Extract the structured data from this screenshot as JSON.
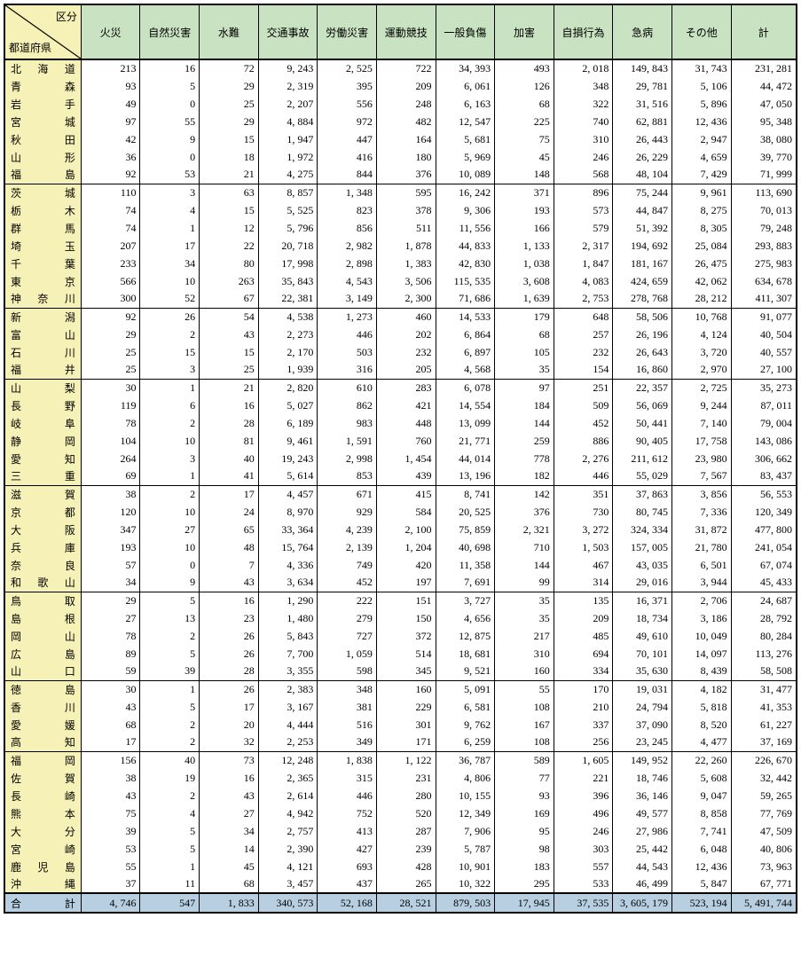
{
  "header": {
    "corner_top": "区分",
    "corner_bottom": "都道府県",
    "cols": [
      "火災",
      "自然災害",
      "水難",
      "交通事故",
      "労働災害",
      "運動競技",
      "一般負傷",
      "加害",
      "自損行為",
      "急病",
      "その他",
      "計"
    ]
  },
  "colors": {
    "header_bg": "#c9e3c2",
    "pref_bg": "#f6f1b7",
    "total_bg": "#b7cfe0",
    "border": "#000000"
  },
  "colwidths": {
    "pref": 83,
    "col": 64,
    "last": 71
  },
  "groups": [
    {
      "rows": [
        {
          "pref": "北海道",
          "v": [
            213,
            16,
            72,
            9243,
            2525,
            722,
            34393,
            493,
            2018,
            149843,
            31743,
            231281
          ]
        },
        {
          "pref": "青森",
          "v": [
            93,
            5,
            29,
            2319,
            395,
            209,
            6061,
            126,
            348,
            29781,
            5106,
            44472
          ]
        },
        {
          "pref": "岩手",
          "v": [
            49,
            0,
            25,
            2207,
            556,
            248,
            6163,
            68,
            322,
            31516,
            5896,
            47050
          ]
        },
        {
          "pref": "宮城",
          "v": [
            97,
            55,
            29,
            4884,
            972,
            482,
            12547,
            225,
            740,
            62881,
            12436,
            95348
          ]
        },
        {
          "pref": "秋田",
          "v": [
            42,
            9,
            15,
            1947,
            447,
            164,
            5681,
            75,
            310,
            26443,
            2947,
            38080
          ]
        },
        {
          "pref": "山形",
          "v": [
            36,
            0,
            18,
            1972,
            416,
            180,
            5969,
            45,
            246,
            26229,
            4659,
            39770
          ]
        },
        {
          "pref": "福島",
          "v": [
            92,
            53,
            21,
            4275,
            844,
            376,
            10089,
            148,
            568,
            48104,
            7429,
            71999
          ]
        }
      ]
    },
    {
      "rows": [
        {
          "pref": "茨城",
          "v": [
            110,
            3,
            63,
            8857,
            1348,
            595,
            16242,
            371,
            896,
            75244,
            9961,
            113690
          ]
        },
        {
          "pref": "栃木",
          "v": [
            74,
            4,
            15,
            5525,
            823,
            378,
            9306,
            193,
            573,
            44847,
            8275,
            70013
          ]
        },
        {
          "pref": "群馬",
          "v": [
            74,
            1,
            12,
            5796,
            856,
            511,
            11556,
            166,
            579,
            51392,
            8305,
            79248
          ]
        },
        {
          "pref": "埼玉",
          "v": [
            207,
            17,
            22,
            20718,
            2982,
            1878,
            44833,
            1133,
            2317,
            194692,
            25084,
            293883
          ]
        },
        {
          "pref": "千葉",
          "v": [
            233,
            34,
            80,
            17998,
            2898,
            1383,
            42830,
            1038,
            1847,
            181167,
            26475,
            275983
          ]
        },
        {
          "pref": "東京",
          "v": [
            566,
            10,
            263,
            35843,
            4543,
            3506,
            115535,
            3608,
            4083,
            424659,
            42062,
            634678
          ]
        },
        {
          "pref": "神奈川",
          "v": [
            300,
            52,
            67,
            22381,
            3149,
            2300,
            71686,
            1639,
            2753,
            278768,
            28212,
            411307
          ]
        }
      ]
    },
    {
      "rows": [
        {
          "pref": "新潟",
          "v": [
            92,
            26,
            54,
            4538,
            1273,
            460,
            14533,
            179,
            648,
            58506,
            10768,
            91077
          ]
        },
        {
          "pref": "富山",
          "v": [
            29,
            2,
            43,
            2273,
            446,
            202,
            6864,
            68,
            257,
            26196,
            4124,
            40504
          ]
        },
        {
          "pref": "石川",
          "v": [
            25,
            15,
            15,
            2170,
            503,
            232,
            6897,
            105,
            232,
            26643,
            3720,
            40557
          ]
        },
        {
          "pref": "福井",
          "v": [
            25,
            3,
            25,
            1939,
            316,
            205,
            4568,
            35,
            154,
            16860,
            2970,
            27100
          ]
        }
      ]
    },
    {
      "rows": [
        {
          "pref": "山梨",
          "v": [
            30,
            1,
            21,
            2820,
            610,
            283,
            6078,
            97,
            251,
            22357,
            2725,
            35273
          ]
        },
        {
          "pref": "長野",
          "v": [
            119,
            6,
            16,
            5027,
            862,
            421,
            14554,
            184,
            509,
            56069,
            9244,
            87011
          ]
        },
        {
          "pref": "岐阜",
          "v": [
            78,
            2,
            28,
            6189,
            983,
            448,
            13099,
            144,
            452,
            50441,
            7140,
            79004
          ]
        },
        {
          "pref": "静岡",
          "v": [
            104,
            10,
            81,
            9461,
            1591,
            760,
            21771,
            259,
            886,
            90405,
            17758,
            143086
          ]
        },
        {
          "pref": "愛知",
          "v": [
            264,
            3,
            40,
            19243,
            2998,
            1454,
            44014,
            778,
            2276,
            211612,
            23980,
            306662
          ]
        },
        {
          "pref": "三重",
          "v": [
            69,
            1,
            41,
            5614,
            853,
            439,
            13196,
            182,
            446,
            55029,
            7567,
            83437
          ]
        }
      ]
    },
    {
      "rows": [
        {
          "pref": "滋賀",
          "v": [
            38,
            2,
            17,
            4457,
            671,
            415,
            8741,
            142,
            351,
            37863,
            3856,
            56553
          ]
        },
        {
          "pref": "京都",
          "v": [
            120,
            10,
            24,
            8970,
            929,
            584,
            20525,
            376,
            730,
            80745,
            7336,
            120349
          ]
        },
        {
          "pref": "大阪",
          "v": [
            347,
            27,
            65,
            33364,
            4239,
            2100,
            75859,
            2321,
            3272,
            324334,
            31872,
            477800
          ]
        },
        {
          "pref": "兵庫",
          "v": [
            193,
            10,
            48,
            15764,
            2139,
            1204,
            40698,
            710,
            1503,
            157005,
            21780,
            241054
          ]
        },
        {
          "pref": "奈良",
          "v": [
            57,
            0,
            7,
            4336,
            749,
            420,
            11358,
            144,
            467,
            43035,
            6501,
            67074
          ]
        },
        {
          "pref": "和歌山",
          "v": [
            34,
            9,
            43,
            3634,
            452,
            197,
            7691,
            99,
            314,
            29016,
            3944,
            45433
          ]
        }
      ]
    },
    {
      "rows": [
        {
          "pref": "鳥取",
          "v": [
            29,
            5,
            16,
            1290,
            222,
            151,
            3727,
            35,
            135,
            16371,
            2706,
            24687
          ]
        },
        {
          "pref": "島根",
          "v": [
            27,
            13,
            23,
            1480,
            279,
            150,
            4656,
            35,
            209,
            18734,
            3186,
            28792
          ]
        },
        {
          "pref": "岡山",
          "v": [
            78,
            2,
            26,
            5843,
            727,
            372,
            12875,
            217,
            485,
            49610,
            10049,
            80284
          ]
        },
        {
          "pref": "広島",
          "v": [
            89,
            5,
            26,
            7700,
            1059,
            514,
            18681,
            310,
            694,
            70101,
            14097,
            113276
          ]
        },
        {
          "pref": "山口",
          "v": [
            59,
            39,
            28,
            3355,
            598,
            345,
            9521,
            160,
            334,
            35630,
            8439,
            58508
          ]
        }
      ]
    },
    {
      "rows": [
        {
          "pref": "徳島",
          "v": [
            30,
            1,
            26,
            2383,
            348,
            160,
            5091,
            55,
            170,
            19031,
            4182,
            31477
          ]
        },
        {
          "pref": "香川",
          "v": [
            43,
            5,
            17,
            3167,
            381,
            229,
            6581,
            108,
            210,
            24794,
            5818,
            41353
          ]
        },
        {
          "pref": "愛媛",
          "v": [
            68,
            2,
            20,
            4444,
            516,
            301,
            9762,
            167,
            337,
            37090,
            8520,
            61227
          ]
        },
        {
          "pref": "高知",
          "v": [
            17,
            2,
            32,
            2253,
            349,
            171,
            6259,
            108,
            256,
            23245,
            4477,
            37169
          ]
        }
      ]
    },
    {
      "rows": [
        {
          "pref": "福岡",
          "v": [
            156,
            40,
            73,
            12248,
            1838,
            1122,
            36787,
            589,
            1605,
            149952,
            22260,
            226670
          ]
        },
        {
          "pref": "佐賀",
          "v": [
            38,
            19,
            16,
            2365,
            315,
            231,
            4806,
            77,
            221,
            18746,
            5608,
            32442
          ]
        },
        {
          "pref": "長崎",
          "v": [
            43,
            2,
            43,
            2614,
            446,
            280,
            10155,
            93,
            396,
            36146,
            9047,
            59265
          ]
        },
        {
          "pref": "熊本",
          "v": [
            75,
            4,
            27,
            4942,
            752,
            520,
            12349,
            169,
            496,
            49577,
            8858,
            77769
          ]
        },
        {
          "pref": "大分",
          "v": [
            39,
            5,
            34,
            2757,
            413,
            287,
            7906,
            95,
            246,
            27986,
            7741,
            47509
          ]
        },
        {
          "pref": "宮崎",
          "v": [
            53,
            5,
            14,
            2390,
            427,
            239,
            5787,
            98,
            303,
            25442,
            6048,
            40806
          ]
        },
        {
          "pref": "鹿児島",
          "v": [
            55,
            1,
            45,
            4121,
            693,
            428,
            10901,
            183,
            557,
            44543,
            12436,
            73963
          ]
        },
        {
          "pref": "沖縄",
          "v": [
            37,
            11,
            68,
            3457,
            437,
            265,
            10322,
            295,
            533,
            46499,
            5847,
            67771
          ]
        }
      ]
    }
  ],
  "total": {
    "label": "合計",
    "v": [
      4746,
      547,
      1833,
      340573,
      52168,
      28521,
      879503,
      17945,
      37535,
      3605179,
      523194,
      5491744
    ]
  }
}
